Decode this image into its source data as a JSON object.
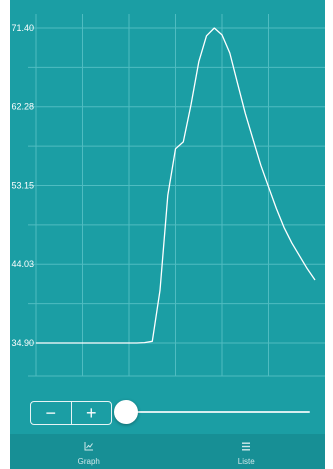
{
  "chart_data": {
    "type": "line",
    "ylim": [
      34.9,
      71.4
    ],
    "yticks": [
      "71.40",
      "62.28",
      "53.15",
      "44.03",
      "34.90"
    ],
    "grid": true,
    "series": [
      {
        "x": [
          0,
          1,
          2,
          3,
          4,
          5,
          6,
          7,
          8,
          9,
          10,
          11,
          12,
          13,
          14,
          15,
          16,
          17,
          18,
          19,
          20,
          21,
          22,
          23,
          24,
          25,
          26,
          27,
          28,
          29,
          30,
          31,
          32,
          33,
          34,
          35,
          36
        ],
        "values": [
          34.9,
          34.9,
          34.9,
          34.9,
          34.9,
          34.9,
          34.9,
          34.9,
          34.9,
          34.9,
          34.9,
          34.9,
          34.9,
          34.9,
          34.95,
          35.1,
          41.0,
          52.0,
          57.4,
          58.2,
          62.5,
          67.5,
          70.5,
          71.4,
          70.6,
          68.5,
          65.0,
          61.5,
          58.5,
          55.5,
          53.0,
          50.5,
          48.3,
          46.5,
          45.0,
          43.5,
          42.2
        ]
      }
    ]
  },
  "controls": {
    "minus_label": "−",
    "plus_label": "+",
    "slider_value": 0
  },
  "tabs": [
    {
      "label": "Graph",
      "icon": "chart-icon"
    },
    {
      "label": "Liste",
      "icon": "list-icon"
    }
  ],
  "colors": {
    "background": "#1b9ea4",
    "line": "#ffffff",
    "grid": "#4fbcc1",
    "tabbar": "#178f95"
  }
}
